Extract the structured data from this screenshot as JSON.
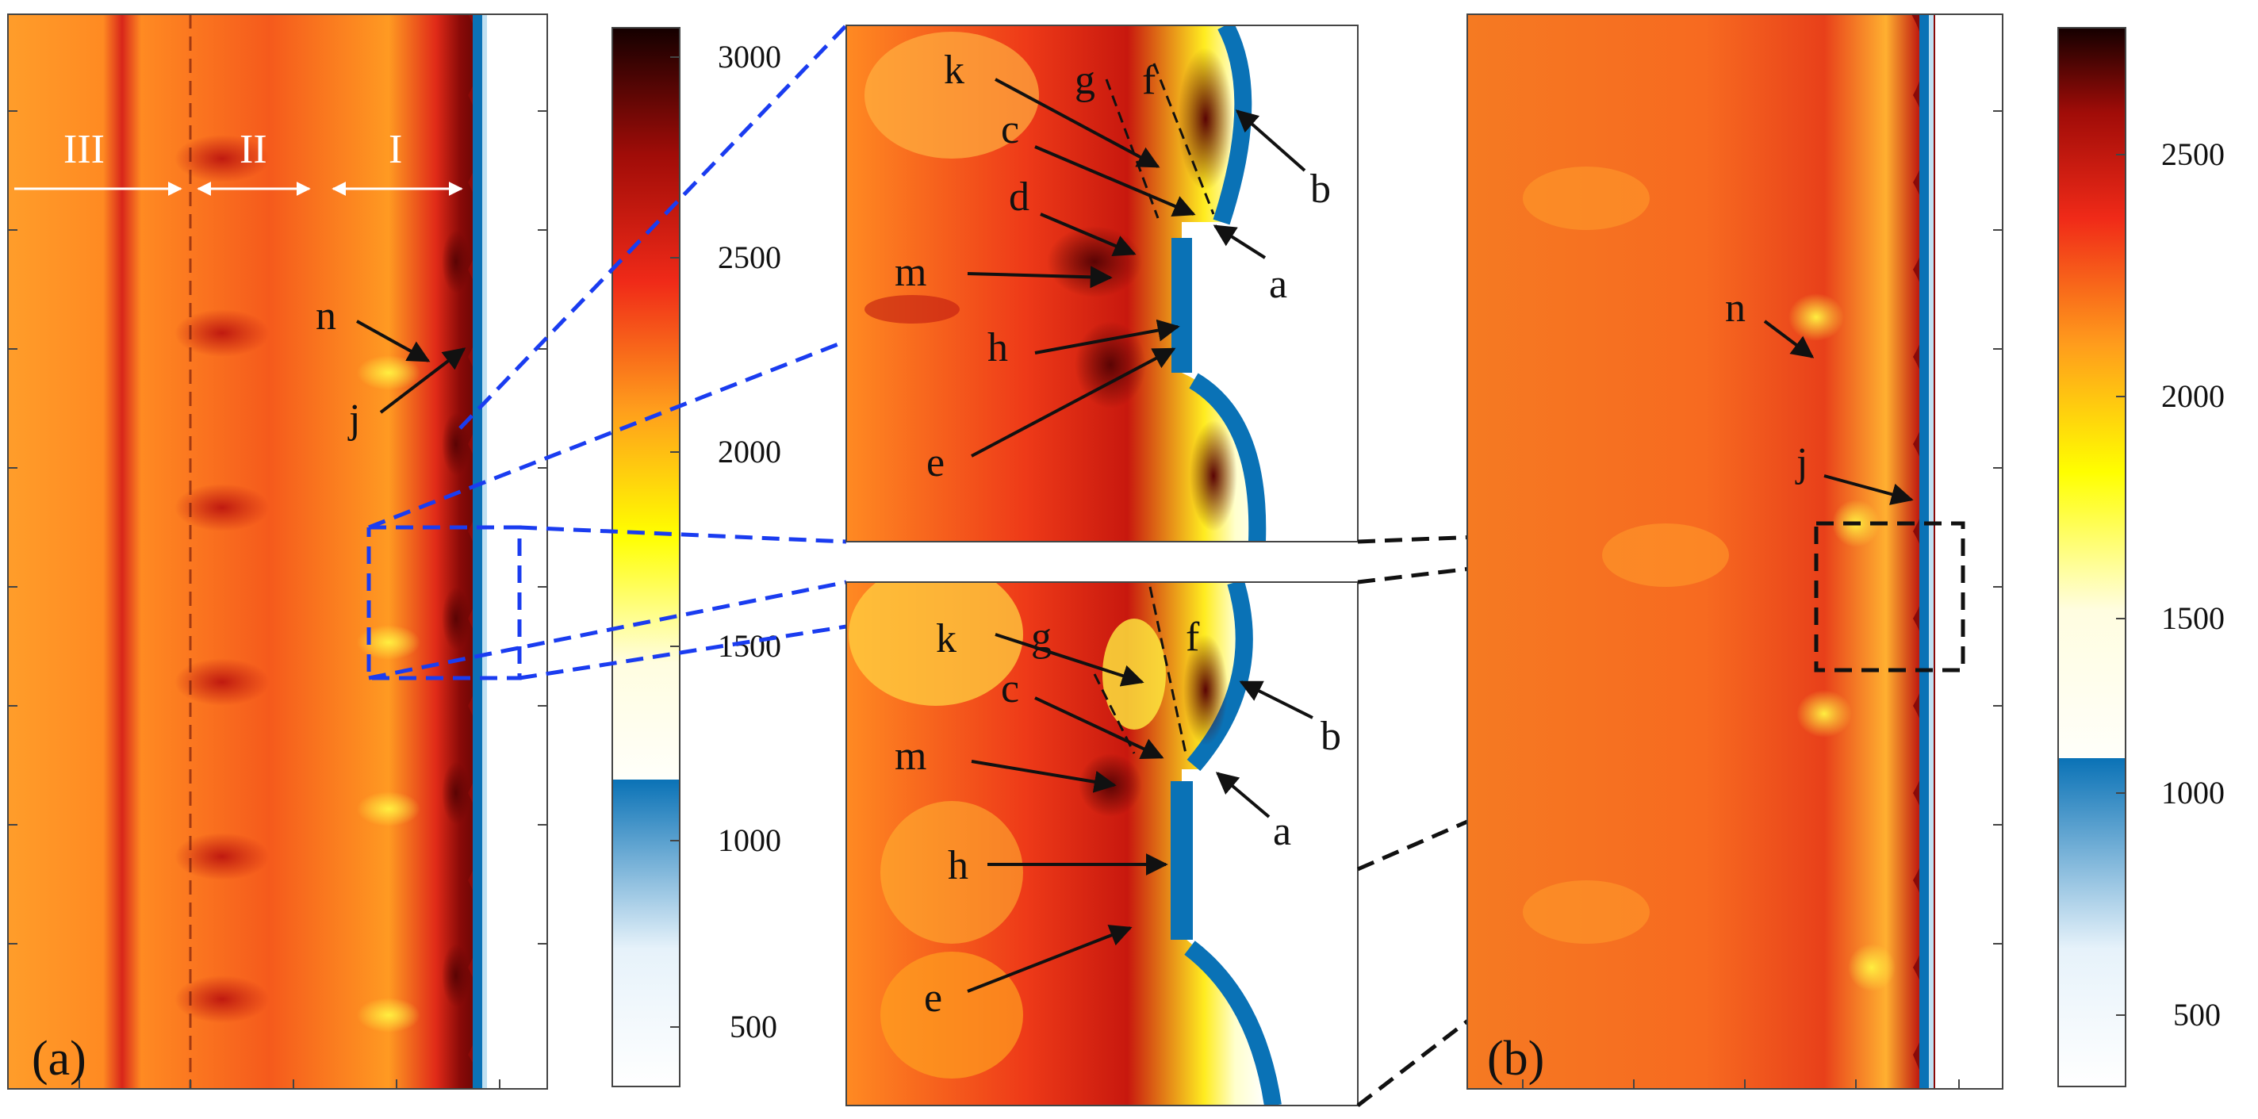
{
  "figure": {
    "panel_a_label": "(a)",
    "panel_b_label": "(b)",
    "zones": {
      "III": "III",
      "II": "II",
      "I": "I"
    },
    "panel_a_markers": {
      "n": "n",
      "j": "j"
    },
    "panel_b_markers": {
      "n": "n",
      "j": "j"
    },
    "zoom_top_markers": {
      "k": "k",
      "g": "g",
      "f": "f",
      "c": "c",
      "b": "b",
      "d": "d",
      "m": "m",
      "a": "a",
      "h": "h",
      "e": "e"
    },
    "zoom_bottom_markers": {
      "k": "k",
      "g": "g",
      "f": "f",
      "c": "c",
      "b": "b",
      "m": "m",
      "a": "a",
      "h": "h",
      "e": "e"
    },
    "colorbar_a": {
      "ticks": [
        "3000",
        "2500",
        "2000",
        "1500",
        "1000",
        "500"
      ]
    },
    "colorbar_b": {
      "ticks": [
        "2500",
        "2000",
        "1500",
        "1000",
        "500"
      ]
    },
    "colors": {
      "cool_dark": "#0a72b6",
      "cool_light": "#e6f2fa",
      "warm_light": "#fffde4",
      "yellow": "#fff500",
      "orange": "#ff9d1c",
      "red": "#e8261a",
      "dark_red": "#8a0a08",
      "black": "#1a0000",
      "zoom_line_a": "#1a3cf0",
      "zoom_line_b": "#111111"
    }
  }
}
